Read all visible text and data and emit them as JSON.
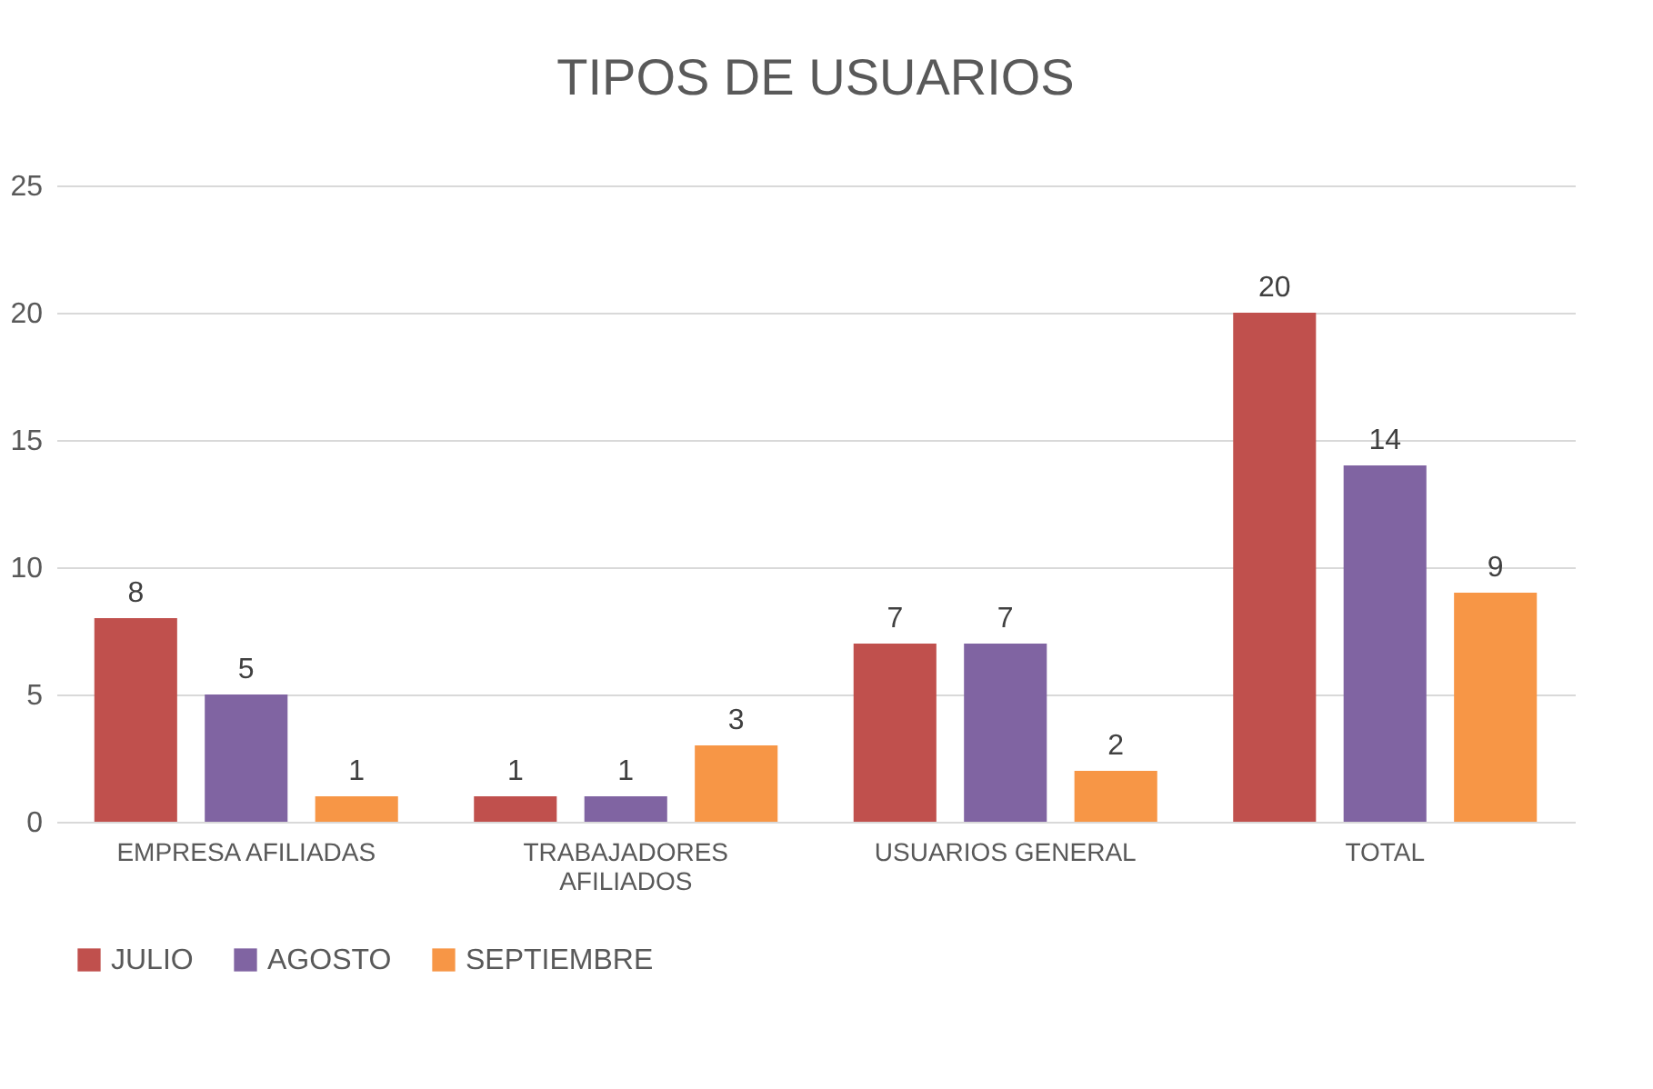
{
  "chart_data": {
    "type": "bar",
    "title": "TIPOS DE USUARIOS",
    "categories": [
      "EMPRESA AFILIADAS",
      "TRABAJADORES AFILIADOS",
      "USUARIOS GENERAL",
      "TOTAL"
    ],
    "series": [
      {
        "name": "JULIO",
        "color": "#c0504d",
        "values": [
          8,
          1,
          7,
          20
        ]
      },
      {
        "name": "AGOSTO",
        "color": "#8064a2",
        "values": [
          5,
          1,
          7,
          14
        ]
      },
      {
        "name": "SEPTIEMBRE",
        "color": "#f79646",
        "values": [
          1,
          3,
          2,
          9
        ]
      }
    ],
    "ylim": [
      0,
      25
    ],
    "yticks": [
      0,
      5,
      10,
      15,
      20,
      25
    ],
    "grid": "y",
    "legend": "bottom",
    "data_labels": true
  }
}
